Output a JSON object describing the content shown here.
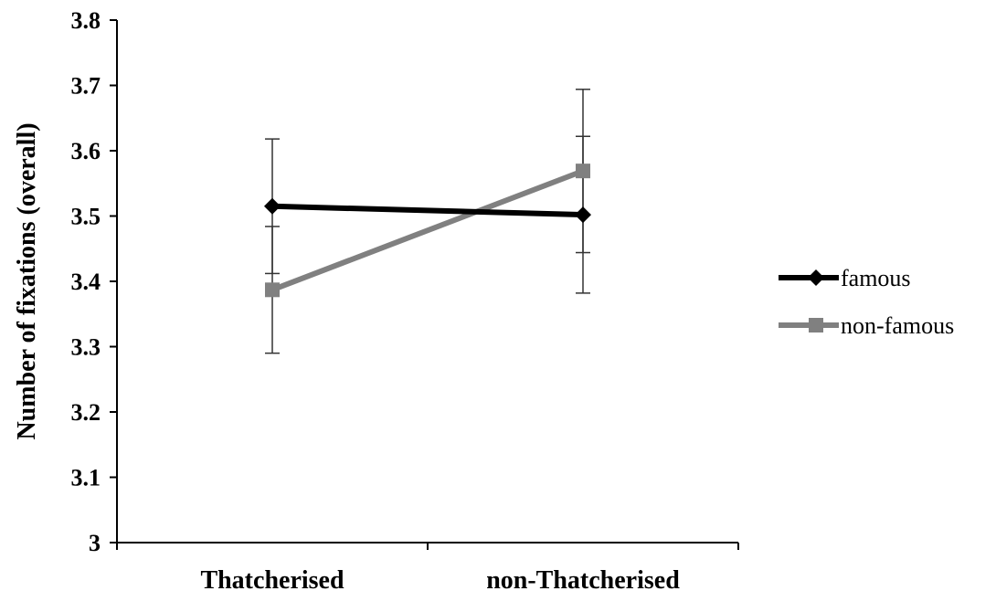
{
  "chart_data": {
    "type": "line",
    "title": "",
    "xlabel": "",
    "ylabel": "Number of fixations (overall)",
    "ylim": [
      3,
      3.8
    ],
    "yticks": [
      "3",
      "3.1",
      "3.2",
      "3.3",
      "3.4",
      "3.5",
      "3.6",
      "3.7",
      "3.8"
    ],
    "categories": [
      "Thatcherised",
      "non-Thatcherised"
    ],
    "grid": false,
    "legend_position": "right",
    "series": [
      {
        "name": "famous",
        "values": [
          3.515,
          3.502
        ],
        "error": [
          0.103,
          0.12
        ],
        "color": "#000000",
        "marker": "diamond"
      },
      {
        "name": "non-famous",
        "values": [
          3.387,
          3.569
        ],
        "error": [
          0.097,
          0.125
        ],
        "color": "#808080",
        "marker": "square"
      }
    ]
  }
}
